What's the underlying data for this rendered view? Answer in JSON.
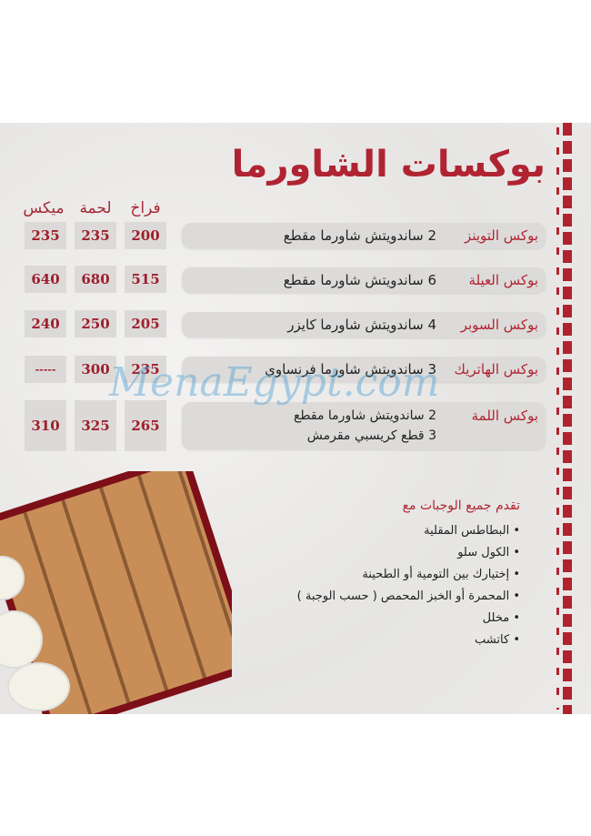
{
  "title": "بوكسات الشاورما",
  "columns": [
    "فراخ",
    "لحمة",
    "ميكس"
  ],
  "items": [
    {
      "name": "بوكس التوينز",
      "desc": "2 ساندويتش شاورما مقطع",
      "prices": [
        "200",
        "235",
        "235"
      ]
    },
    {
      "name": "بوكس العيلة",
      "desc": "6 ساندويتش شاورما مقطع",
      "prices": [
        "515",
        "680",
        "640"
      ]
    },
    {
      "name": "بوكس السوبر",
      "desc": "4 ساندويتش شاورما كايزر",
      "prices": [
        "205",
        "250",
        "240"
      ]
    },
    {
      "name": "بوكس الهاتريك",
      "desc": "3 ساندويتش شاورما فرنساوي",
      "prices": [
        "235",
        "300",
        "-----"
      ]
    },
    {
      "name": "بوكس اللمة",
      "desc_lines": [
        "2 ساندويتش شاورما مقطع",
        "3 قطع كريسبي مقرمش"
      ],
      "prices": [
        "265",
        "325",
        "310"
      ]
    }
  ],
  "sides": {
    "heading": "تقدم جميع الوجبات مع",
    "items": [
      "البطاطس المقلية",
      "الكول سلو",
      "إختيارك بين التومية أو الطحينة",
      "المحمرة أو الخبز المحمص ( حسب الوجبة )",
      "مخلل",
      "كاتشب"
    ]
  },
  "watermark": "MenaEgypt.com",
  "colors": {
    "accent": "#b02432",
    "price_bg": "#dcdad8"
  }
}
